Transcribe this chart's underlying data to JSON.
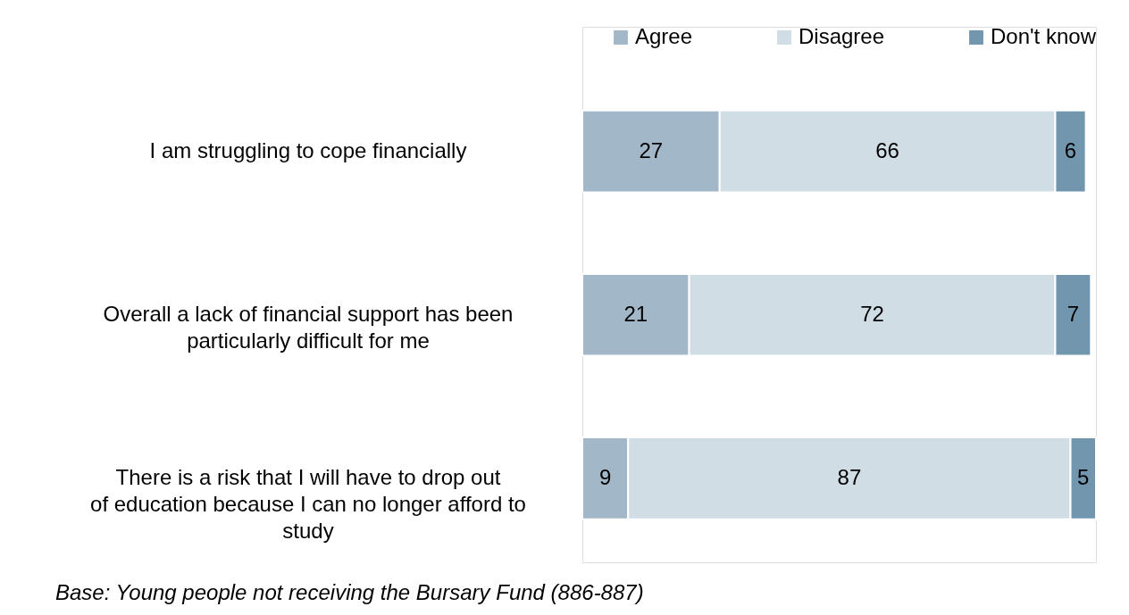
{
  "chart_data": {
    "type": "bar",
    "orientation": "horizontal",
    "stacked": true,
    "data_labels": true,
    "legend": "top right",
    "grid": false,
    "categories": [
      "I am struggling to cope financially",
      "Overall a lack of financial support has been particularly difficult for me",
      "There is a risk that I will have to drop out of education because I can no longer afford to study"
    ],
    "series": [
      {
        "name": "Agree",
        "color": "#a2b8c8",
        "values": [
          27,
          21,
          9
        ]
      },
      {
        "name": "Disagree",
        "color": "#d0dde5",
        "values": [
          66,
          72,
          87
        ]
      },
      {
        "name": "Don't know",
        "color": "#7196ae",
        "values": [
          6,
          7,
          5
        ]
      }
    ],
    "annotations": [
      "Base: Young people not receiving the Bursary Fund (886-887)"
    ]
  }
}
